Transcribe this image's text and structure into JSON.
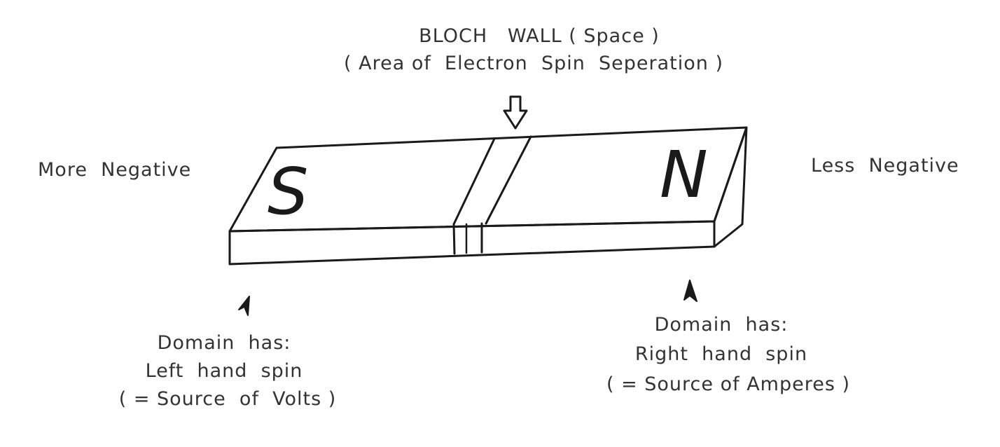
{
  "bloch_wall": {
    "title": "BLOCH   WALL ( Space )",
    "subtitle": "( Area of  Electron  Spin  Seperation )"
  },
  "sides": {
    "left": "More  Negative",
    "right": "Less  Negative"
  },
  "poles": {
    "south": "S",
    "north": "N"
  },
  "left_domain": {
    "line1": "Domain  has:",
    "line2": "Left  hand  spin",
    "line3": "( = Source  of  Volts )"
  },
  "right_domain": {
    "line1": "Domain  has:",
    "line2": "Right  hand  spin",
    "line3": "( = Source of Amperes )"
  },
  "colors": {
    "ink": "#1a1a1a",
    "paper": "#ffffff"
  }
}
